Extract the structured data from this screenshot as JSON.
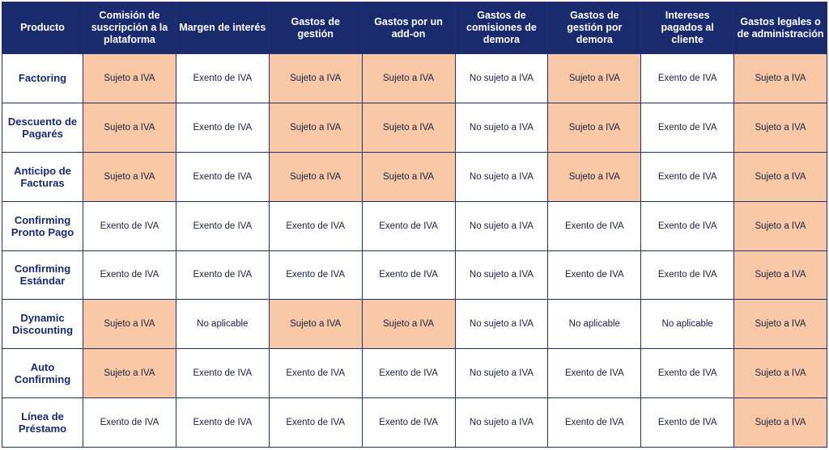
{
  "colors": {
    "header_bg": "#1a2b6d",
    "header_text": "#ffffff",
    "row_label_text": "#1a2b6d",
    "taxed_cell_bg": "#f9c9a7",
    "plain_cell_bg": "#ffffff"
  },
  "table": {
    "headers": [
      "Producto",
      "Comisión de suscripción a la plataforma",
      "Margen de interés",
      "Gastos de gestión",
      "Gastos por un add-on",
      "Gastos de comisiones de demora",
      "Gastos de gestión por demora",
      "Intereses pagados al cliente",
      "Gastos legales o de administración"
    ],
    "rows": [
      {
        "product": "Factoring",
        "cells": [
          "Sujeto a IVA",
          "Exento de IVA",
          "Sujeto a IVA",
          "Sujeto a IVA",
          "No sujeto a IVA",
          "Sujeto a IVA",
          "Exento de IVA",
          "Sujeto a IVA"
        ]
      },
      {
        "product": "Descuento de Pagarés",
        "cells": [
          "Sujeto a IVA",
          "Exento de IVA",
          "Sujeto a IVA",
          "Sujeto a IVA",
          "No sujeto a IVA",
          "Sujeto a IVA",
          "Exento de IVA",
          "Sujeto a IVA"
        ]
      },
      {
        "product": "Anticipo de Facturas",
        "cells": [
          "Sujeto a IVA",
          "Exento de IVA",
          "Sujeto a IVA",
          "Sujeto a IVA",
          "No sujeto a IVA",
          "Sujeto a IVA",
          "Exento de IVA",
          "Sujeto a IVA"
        ]
      },
      {
        "product": "Confirming Pronto Pago",
        "cells": [
          "Exento de IVA",
          "Exento de IVA",
          "Exento de IVA",
          "Exento de IVA",
          "No sujeto a IVA",
          "Exento de IVA",
          "Exento de IVA",
          "Sujeto a IVA"
        ]
      },
      {
        "product": "Confirming Estándar",
        "cells": [
          "Exento de IVA",
          "Exento de IVA",
          "Exento de IVA",
          "Exento de IVA",
          "No sujeto a IVA",
          "Exento de IVA",
          "Exento de IVA",
          "Sujeto a IVA"
        ]
      },
      {
        "product": "Dynamic Discounting",
        "cells": [
          "Sujeto a IVA",
          "No aplicable",
          "Sujeto a IVA",
          "Sujeto a IVA",
          "No sujeto a IVA",
          "No aplicable",
          "No aplicable",
          "Sujeto a IVA"
        ]
      },
      {
        "product": "Auto Confirming",
        "cells": [
          "Sujeto a IVA",
          "Exento de IVA",
          "Exento de IVA",
          "Exento de IVA",
          "No sujeto a IVA",
          "Exento de IVA",
          "Exento de IVA",
          "Sujeto a IVA"
        ]
      },
      {
        "product": "Línea de Préstamo",
        "cells": [
          "Exento de IVA",
          "Exento de IVA",
          "Exento de IVA",
          "Exento de IVA",
          "No sujeto a IVA",
          "Exento de IVA",
          "Exento de IVA",
          "Sujeto a IVA"
        ]
      }
    ]
  }
}
